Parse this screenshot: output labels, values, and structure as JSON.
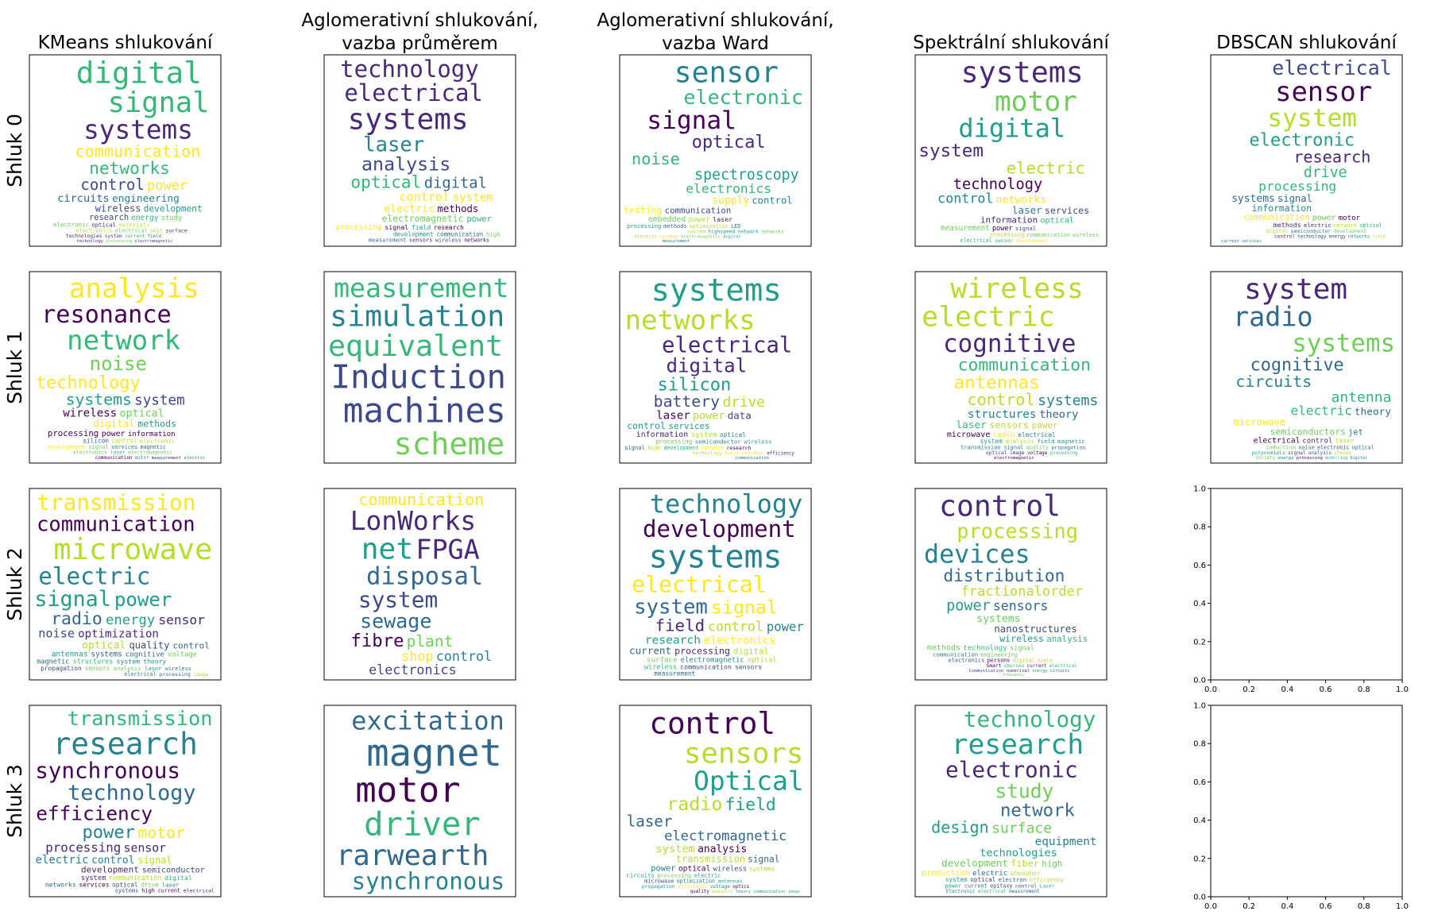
{
  "chart_data": {
    "type": "wordcloud-grid",
    "column_titles": [
      [
        "KMeans shlukování"
      ],
      [
        "Aglomerativní shlukování,",
        "vazba průměrem"
      ],
      [
        "Aglomerativní shlukování,",
        "vazba Ward"
      ],
      [
        "Spektrální shlukování"
      ],
      [
        "DBSCAN shlukování"
      ]
    ],
    "row_labels": [
      "Shluk 0",
      "Shluk 1",
      "Shluk 2",
      "Shluk 3"
    ],
    "empty_axes": {
      "cells": [
        [
          2,
          4
        ],
        [
          3,
          4
        ]
      ],
      "xlim": [
        0,
        1
      ],
      "ylim": [
        0,
        1
      ],
      "ticks": [
        "0.0",
        "0.2",
        "0.4",
        "0.6",
        "0.8",
        "1.0"
      ]
    },
    "palette": [
      "#440154",
      "#482878",
      "#3e4989",
      "#31688e",
      "#26828e",
      "#1f9e89",
      "#35b779",
      "#6ece58",
      "#b5de2b",
      "#fde725"
    ],
    "clouds": [
      [
        [
          "digital",
          "signal",
          "systems",
          "communication",
          "networks",
          "control",
          "power",
          "circuits",
          "engineering",
          "wireless",
          "development",
          "research",
          "energy",
          "study",
          "electronic",
          "optical",
          "materials",
          "electronics",
          "electrical",
          "unit",
          "surface",
          "technologies",
          "system",
          "current",
          "field",
          "technology",
          "processing",
          "electromagnetic"
        ],
        [
          "technology",
          "electrical",
          "systems",
          "laser",
          "analysis",
          "optical",
          "digital",
          "control",
          "system",
          "electric",
          "methods",
          "electromagnetic",
          "power",
          "processing",
          "signal",
          "field",
          "research",
          "development",
          "communication",
          "high",
          "measurement",
          "sensors",
          "wireless",
          "networks"
        ],
        [
          "sensor",
          "electronic",
          "signal",
          "optical",
          "noise",
          "spectroscopy",
          "electronics",
          "supply",
          "control",
          "testing",
          "communication",
          "embedded",
          "power",
          "laser",
          "processing",
          "methods",
          "optimization",
          "LED",
          "system",
          "highspeed",
          "network",
          "networks",
          "electric",
          "systems",
          "electromagnetic",
          "digital",
          "measurement"
        ],
        [
          "systems",
          "motor",
          "digital",
          "system",
          "electric",
          "technology",
          "control",
          "networks",
          "laser",
          "services",
          "information",
          "optical",
          "measurement",
          "power",
          "signal",
          "processing",
          "communication",
          "wireless",
          "electrical",
          "sensor",
          "development"
        ],
        [
          "electrical",
          "sensor",
          "system",
          "electronic",
          "research",
          "drive",
          "processing",
          "systems",
          "signal",
          "information",
          "communication",
          "power",
          "motor",
          "methods",
          "electric",
          "network",
          "optical",
          "digital",
          "semiconductor",
          "development",
          "control",
          "technology",
          "energy",
          "networks",
          "field",
          "current",
          "services"
        ]
      ],
      [
        [
          "analysis",
          "resonance",
          "network",
          "noise",
          "technology",
          "systems",
          "system",
          "wireless",
          "optical",
          "digital",
          "methods",
          "processing",
          "power",
          "information",
          "silicon",
          "control",
          "electronic",
          "development",
          "signal",
          "services",
          "magnetic",
          "electronics",
          "laser",
          "electromagnetic",
          "communication",
          "motor",
          "measurement",
          "electric"
        ],
        [
          "measurement",
          "simulation",
          "equivalent",
          "Induction",
          "machines",
          "scheme"
        ],
        [
          "systems",
          "networks",
          "electrical",
          "digital",
          "silicon",
          "battery",
          "drive",
          "laser",
          "power",
          "data",
          "control",
          "services",
          "information",
          "system",
          "optical",
          "processing",
          "semiconductor",
          "wireless",
          "signal",
          "high",
          "development",
          "network",
          "research",
          "technology",
          "motor",
          "electric",
          "efficiency",
          "communication"
        ],
        [
          "wireless",
          "electric",
          "cognitive",
          "communication",
          "antennas",
          "control",
          "systems",
          "structures",
          "theory",
          "laser",
          "sensors",
          "power",
          "microwave",
          "radio",
          "electrical",
          "system",
          "analysis",
          "field",
          "magnetic",
          "transmission",
          "signal",
          "quality",
          "propagation",
          "optical",
          "image",
          "voltage",
          "processing",
          "electromagnetic"
        ],
        [
          "system",
          "radio",
          "systems",
          "cognitive",
          "circuits",
          "antenna",
          "electric",
          "theory",
          "microwave",
          "semiconductors",
          "jet",
          "electrical",
          "control",
          "laser",
          "induction",
          "noise",
          "electronic",
          "optical",
          "polynomials",
          "signal",
          "analysis",
          "plasma",
          "Society",
          "energy",
          "processing",
          "modelling",
          "Digital"
        ]
      ],
      [
        [
          "transmission",
          "communication",
          "microwave",
          "electric",
          "signal",
          "power",
          "radio",
          "energy",
          "sensor",
          "noise",
          "optimization",
          "optical",
          "quality",
          "control",
          "antennas",
          "systems",
          "cognitive",
          "voltage",
          "magnetic",
          "structures",
          "system",
          "theory",
          "propagation",
          "sensors",
          "analysis",
          "laser",
          "wireless",
          "electrical",
          "processing",
          "image"
        ],
        [
          "communication",
          "LonWorks",
          "net",
          "FPGA",
          "disposal",
          "system",
          "sewage",
          "fibre",
          "plant",
          "shop",
          "control",
          "electronics"
        ],
        [
          "technology",
          "development",
          "systems",
          "electrical",
          "system",
          "signal",
          "field",
          "control",
          "power",
          "research",
          "electronics",
          "current",
          "processing",
          "digital",
          "surface",
          "electromagnetic",
          "optical",
          "wireless",
          "communication",
          "sensors",
          "measurement"
        ],
        [
          "control",
          "processing",
          "devices",
          "distribution",
          "fractionalorder",
          "power",
          "sensors",
          "systems",
          "nanostructures",
          "wireless",
          "analysis",
          "methods",
          "technology",
          "signal",
          "communication",
          "engineering",
          "electronics",
          "persons",
          "digital",
          "field",
          "Smart",
          "sources",
          "current",
          "electrical",
          "Communication",
          "numerical",
          "energy",
          "circuits",
          "frequency"
        ],
        []
      ],
      [
        [
          "transmission",
          "research",
          "synchronous",
          "technology",
          "efficiency",
          "power",
          "motor",
          "processing",
          "sensor",
          "electric",
          "control",
          "signal",
          "development",
          "semiconductor",
          "system",
          "communication",
          "digital",
          "networks",
          "services",
          "optical",
          "drive",
          "laser",
          "systems",
          "high",
          "current",
          "electrical"
        ],
        [
          "excitation",
          "magnet",
          "motor",
          "driver",
          "rarwearth",
          "synchronous"
        ],
        [
          "control",
          "sensors",
          "Optical",
          "radio",
          "field",
          "laser",
          "electromagnetic",
          "system",
          "analysis",
          "transmission",
          "signal",
          "power",
          "optical",
          "wireless",
          "systems",
          "circuits",
          "processing",
          "electric",
          "microwave",
          "optimization",
          "antennas",
          "propagation",
          "structures",
          "voltage",
          "optics",
          "quality",
          "magnetic",
          "theory",
          "communication",
          "image"
        ],
        [
          "technology",
          "research",
          "electronic",
          "study",
          "network",
          "design",
          "surface",
          "equipment",
          "technologies",
          "development",
          "fiber",
          "high",
          "production",
          "electric",
          "phosphor",
          "system",
          "optical",
          "electron",
          "efficiency",
          "power",
          "current",
          "epitaxy",
          "control",
          "Laser",
          "Electronic",
          "electrical",
          "measurement"
        ],
        []
      ]
    ]
  }
}
